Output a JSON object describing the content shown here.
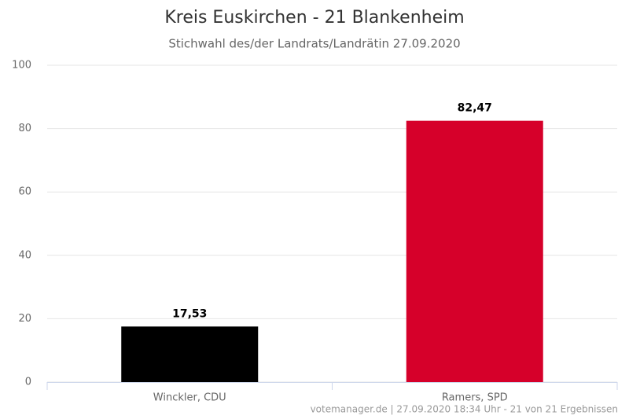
{
  "chart_data": {
    "type": "bar",
    "title": "Kreis Euskirchen - 21 Blankenheim",
    "subtitle": "Stichwahl des/der Landrats/Landrätin 27.09.2020",
    "categories": [
      "Winckler, CDU",
      "Ramers, SPD"
    ],
    "values": [
      17.53,
      82.47
    ],
    "value_labels": [
      "17,53",
      "82,47"
    ],
    "colors": [
      "#000000",
      "#d6002a"
    ],
    "ylim": [
      0,
      100
    ],
    "yticks": [
      0,
      20,
      40,
      60,
      80,
      100
    ],
    "grid": true,
    "credits": "votemanager.de | 27.09.2020 18:34 Uhr - 21 von 21 Ergebnissen"
  }
}
